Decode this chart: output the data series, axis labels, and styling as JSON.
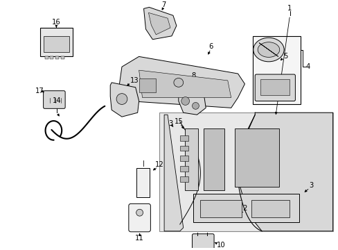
{
  "bg_color": "#ffffff",
  "fig_width": 4.89,
  "fig_height": 3.6,
  "dpi": 100,
  "line_color": "#000000",
  "text_color": "#000000",
  "gray_fill": "#e8e8e8",
  "part_fill": "#d8d8d8",
  "dark_fill": "#c0c0c0"
}
